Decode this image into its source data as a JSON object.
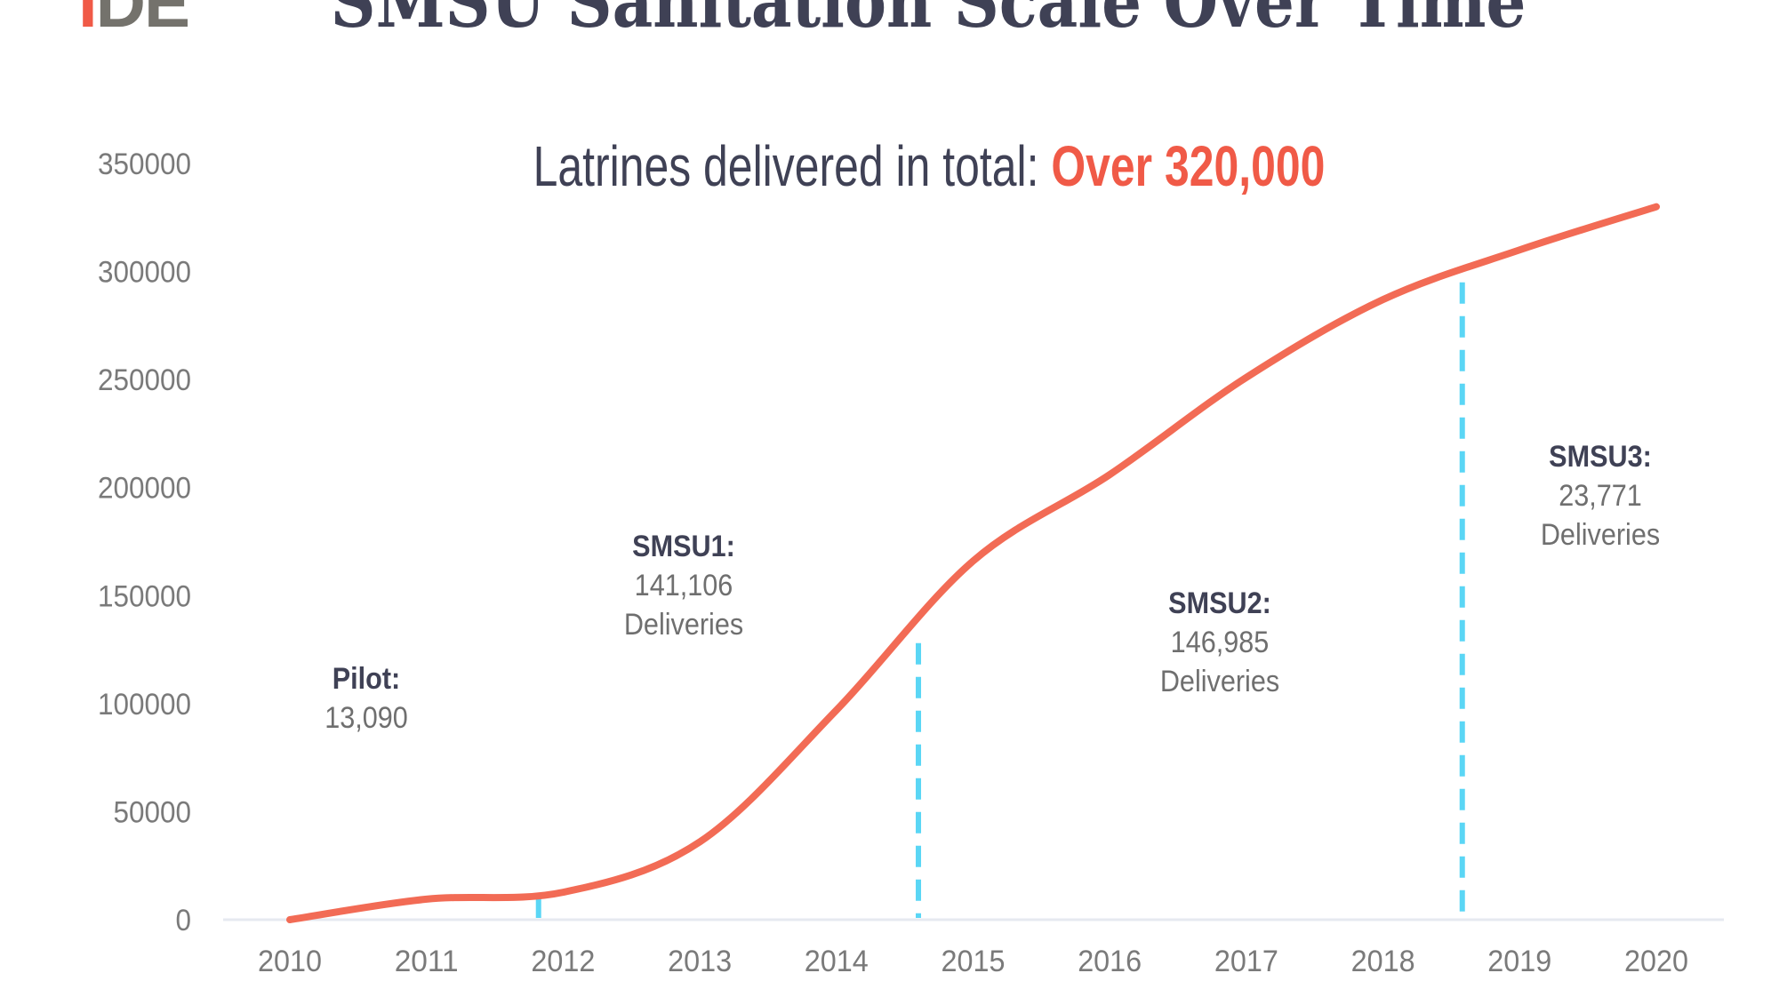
{
  "logo": {
    "text_highlight": "I",
    "text_rest": "DE"
  },
  "title": "SMSU Sanitation Scale Over Time",
  "subtitle": {
    "prefix": "Latrines delivered in total:",
    "highlight": "Over 320,000"
  },
  "colors": {
    "line": "#f26b55",
    "marker": "#5ad6f5",
    "highlight": "#f05a47",
    "text": "#3f4155",
    "axis": "#7a7a7a"
  },
  "chart_data": {
    "type": "line",
    "x": [
      2010,
      2011,
      2012,
      2013,
      2014,
      2015,
      2016,
      2017,
      2018,
      2019,
      2020
    ],
    "series": [
      {
        "values": [
          0,
          9500,
          12700,
          36000,
          97000,
          166000,
          206000,
          251000,
          287000,
          310000,
          330000
        ]
      }
    ],
    "ylim": [
      0,
      350000
    ],
    "yticks": [
      "0",
      "50000",
      "100000",
      "150000",
      "200000",
      "250000",
      "300000",
      "350000"
    ],
    "xticks": [
      "2010",
      "2011",
      "2012",
      "2013",
      "2014",
      "2015",
      "2016",
      "2017",
      "2018",
      "2019",
      "2020"
    ],
    "grid": false,
    "phase_markers": [
      {
        "x": 2011.82,
        "y_top": 13000,
        "style": "dashed"
      },
      {
        "x": 2014.6,
        "y_top": 128000,
        "style": "dashed"
      },
      {
        "x": 2018.58,
        "y_top": 295000,
        "style": "dashed"
      }
    ],
    "annotations": [
      {
        "label": "Pilot:",
        "value": "13,090",
        "note": ""
      },
      {
        "label": "SMSU1:",
        "value": "141,106",
        "note": "Deliveries"
      },
      {
        "label": "SMSU2:",
        "value": "146,985",
        "note": "Deliveries"
      },
      {
        "label": "SMSU3:",
        "value": "23,771",
        "note": "Deliveries"
      }
    ]
  }
}
